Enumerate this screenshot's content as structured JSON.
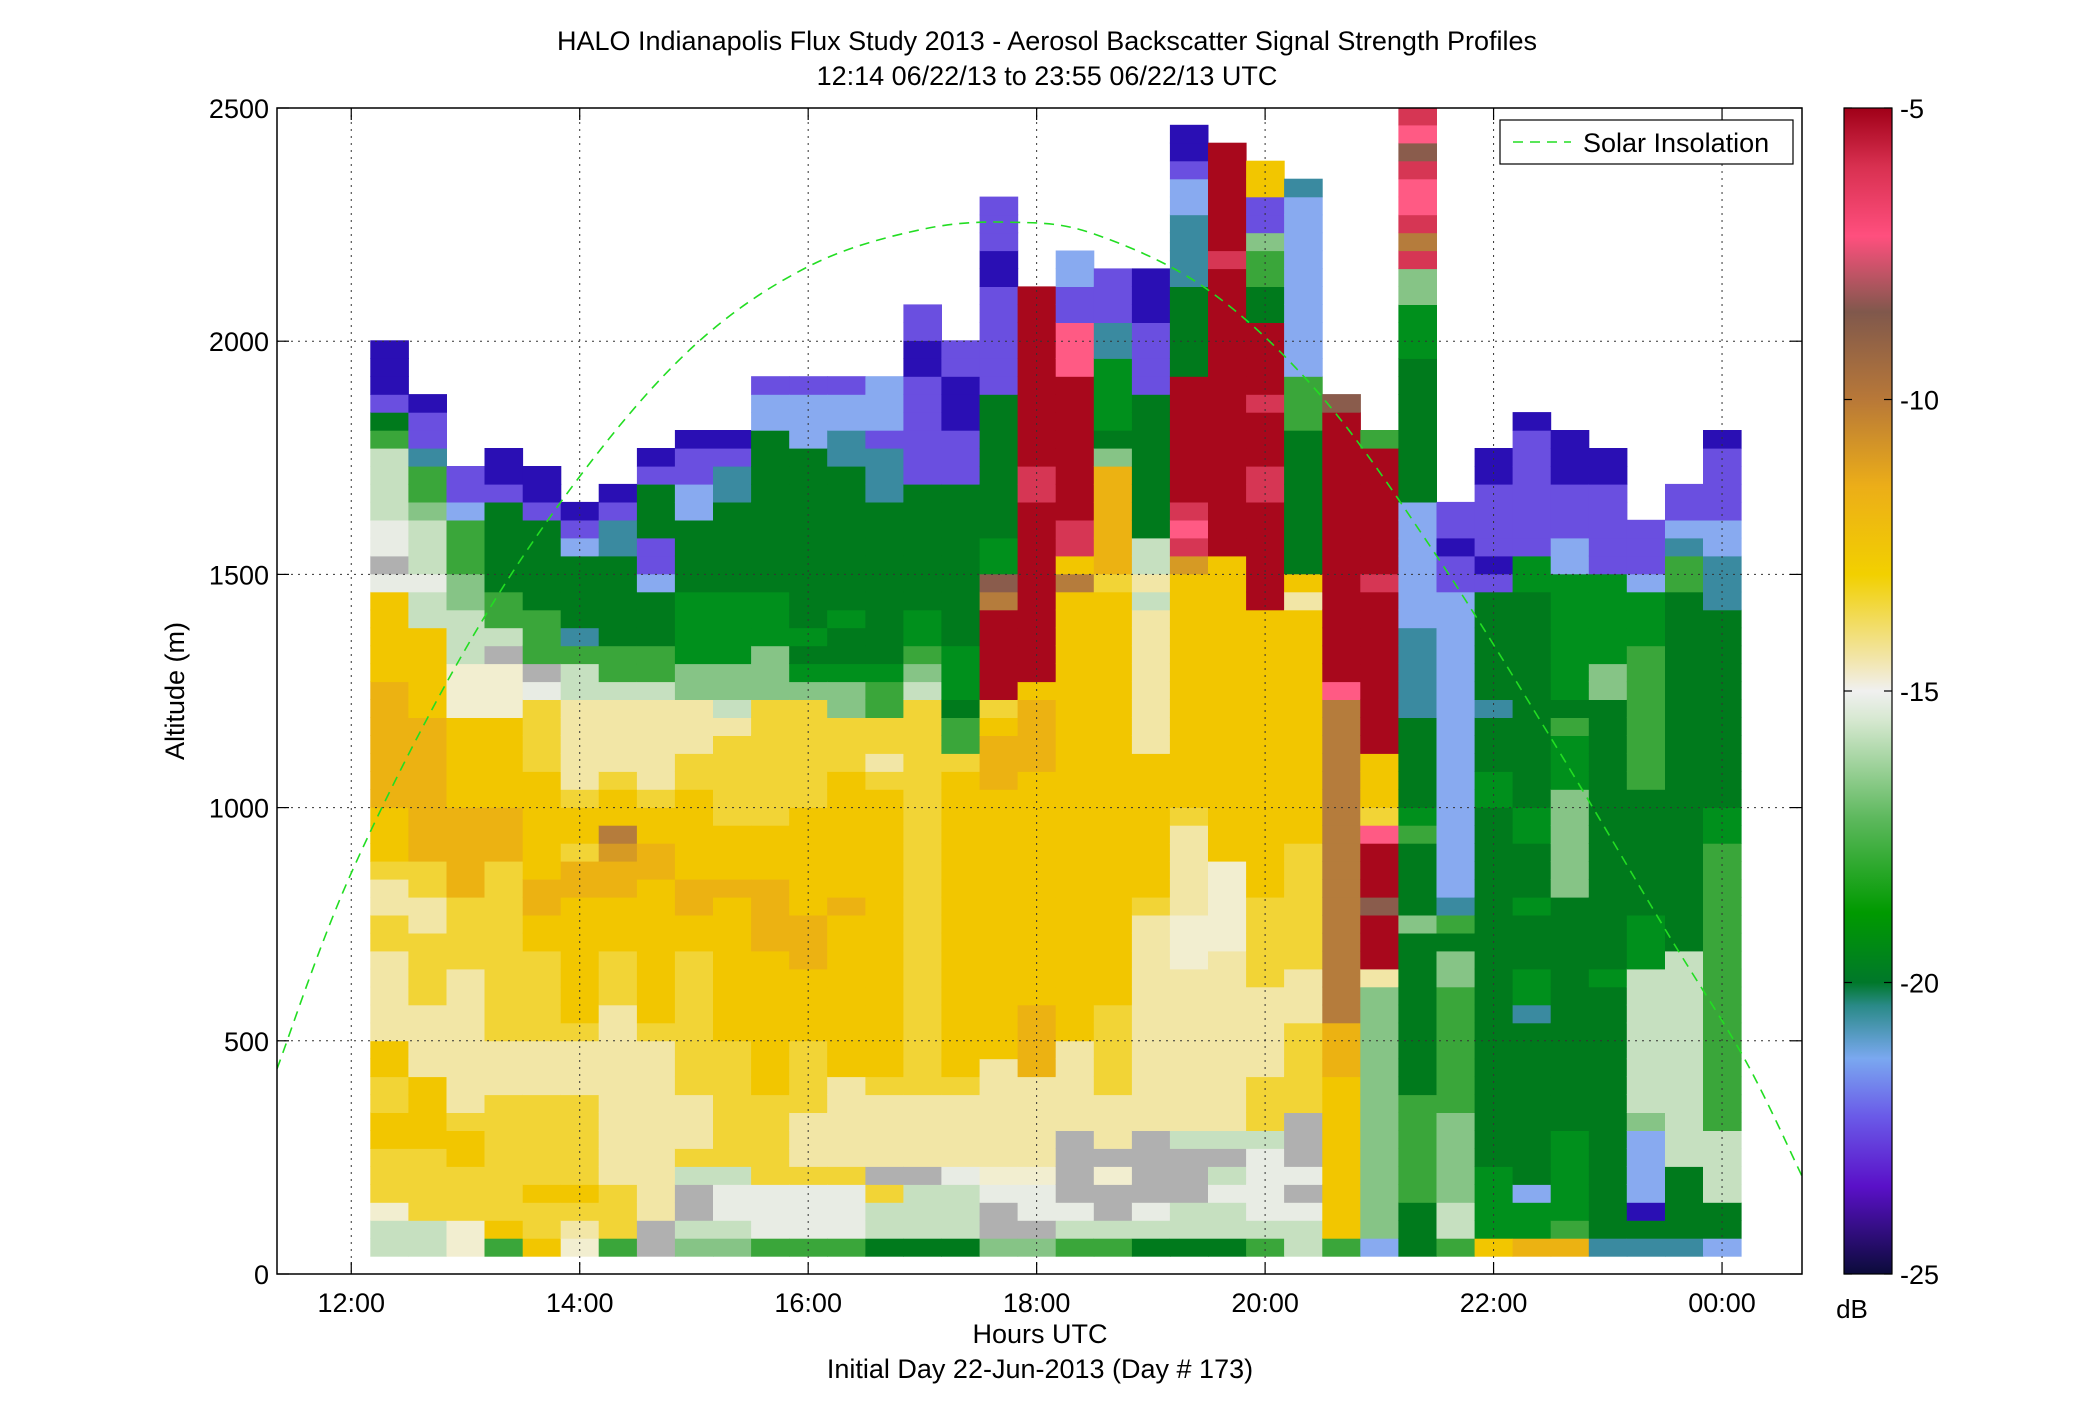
{
  "chart_data": {
    "type": "heatmap",
    "title": "HALO Indianapolis Flux Study 2013 - Aerosol Backscatter Signal Strength Profiles",
    "subtitle": "12:14 06/22/13 to 23:55 06/22/13  UTC",
    "xlabel": "Hours UTC",
    "xlabel2": "Initial Day 22-Jun-2013 (Day # 173)",
    "ylabel": "Altitude (m)",
    "xlim_hours": [
      11.35,
      24.7
    ],
    "ylim": [
      0,
      2500
    ],
    "x_tick_values": [
      12,
      14,
      16,
      18,
      20,
      22,
      24
    ],
    "x_tick_labels": [
      "12:00",
      "14:00",
      "16:00",
      "18:00",
      "20:00",
      "22:00",
      "00:00"
    ],
    "y_ticks": [
      0,
      500,
      1000,
      1500,
      2000,
      2500
    ],
    "grid": true,
    "legend": {
      "placement": "top-right",
      "entries": [
        {
          "name": "Solar Insolation",
          "color": "#22dd22",
          "style": "dashed"
        }
      ]
    },
    "colorbar": {
      "range": [
        -25,
        -5
      ],
      "ticks": [
        -25,
        -20,
        -15,
        -10,
        -5
      ],
      "unit_label": "dB",
      "stops": [
        {
          "v": -25,
          "c": "#0b0b3a"
        },
        {
          "v": -23.5,
          "c": "#5a10c8"
        },
        {
          "v": -22.3,
          "c": "#6a5ae8"
        },
        {
          "v": -21.3,
          "c": "#7aa8f0"
        },
        {
          "v": -20.4,
          "c": "#2a8a88"
        },
        {
          "v": -20,
          "c": "#00782a"
        },
        {
          "v": -18.8,
          "c": "#009a00"
        },
        {
          "v": -17.2,
          "c": "#5cb85c"
        },
        {
          "v": -15.5,
          "c": "#d6e8d0"
        },
        {
          "v": -15.0,
          "c": "#f0f0f0"
        },
        {
          "v": -14.5,
          "c": "#f2e6b0"
        },
        {
          "v": -13.0,
          "c": "#f2d000"
        },
        {
          "v": -11.5,
          "c": "#ecae18"
        },
        {
          "v": -10,
          "c": "#b87838"
        },
        {
          "v": -8.5,
          "c": "#80584c"
        },
        {
          "v": -7.2,
          "c": "#ff4f7e"
        },
        {
          "v": -6,
          "c": "#d83050"
        },
        {
          "v": -5,
          "c": "#a00018"
        }
      ]
    },
    "bin_width_hours": 0.333,
    "bin_height_m": 38.5,
    "palette": {
      "V": "#2a0fb4",
      "P": "#6a4fe0",
      "L": "#88aaf0",
      "T": "#3a8aa0",
      "G": "#007a1c",
      "g": "#00901c",
      "m": "#3aa63a",
      "l": "#86c486",
      "p": "#c6e0c0",
      "w": "#e8ece4",
      "s": "#b0b0b0",
      "c": "#f2eed0",
      "e": "#f2e6a6",
      "y": "#f2d436",
      "Y": "#f2c600",
      "O": "#ecb212",
      "o": "#d69a24",
      "b": "#b57c3c",
      "n": "#8a5c4c",
      "k": "#ff5a84",
      "K": "#d63654",
      "R": "#a8081c"
    },
    "series": [
      {
        "name": "Solar Insolation",
        "type": "line",
        "style": "dashed",
        "x": [
          11.35,
          12,
          13,
          14,
          15,
          16,
          17,
          17.8,
          18.5,
          19.5,
          20.5,
          21.5,
          22.5,
          23.5,
          24.2,
          24.7
        ],
        "y": [
          440,
          860,
          1340,
          1710,
          1990,
          2160,
          2240,
          2255,
          2230,
          2110,
          1880,
          1540,
          1150,
          740,
          460,
          210
        ]
      },
      {
        "name": "profile_12.33",
        "time_hours": 12.333,
        "start_bin": 1,
        "cells": "ppcyyyYYyyYYeeeeeyyeeyYYYOOOOOOOYYYYYwswwppppmGPVVV"
      },
      {
        "name": "profile_12.67",
        "time_hours": 12.667,
        "start_bin": 1,
        "cells": "ppyyyyYYYYeeeeyyyyeeyyOOOOOOOOYYYYYppwppplmmTPPV"
      },
      {
        "name": "profile_13.0",
        "time_hours": 13.0,
        "start_bin": 1,
        "cells": "ccyyyYYyeeeeeeeeyyyyOOOOOYYYYYcccpppllmmmLPP"
      },
      {
        "name": "profile_13.33",
        "time_hours": 13.333,
        "start_bin": 1,
        "cells": "mYyyyyyyyeeeyyyyyyyyyyOOOYYYYYcccspmmGGGGGPVV"
      },
      {
        "name": "profile_13.67",
        "time_hours": 13.667,
        "start_bin": 1,
        "cells": "YyyYyyyyyeeeyyyyyYYOOYYYYYYyyyywsmmmGGGGGPVV"
      },
      {
        "name": "profile_14.0",
        "time_hours": 14.0,
        "start_bin": 1,
        "cells": "ceyYyyyyyeeeyYYYYYYYOOyYYyeeeeeppmTGGGGLPV"
      },
      {
        "name": "profile_14.33",
        "time_hours": 14.333,
        "start_bin": 1,
        "cells": "myyyeeeeeeeeeeyyyYYYOOobYYyeeeepmmGGGGGTTPV"
      },
      {
        "name": "profile_14.67",
        "time_hours": 14.667,
        "start_bin": 1,
        "cells": "sseeeeeeeeeeyYYYYYYYYOOYYyeeeeepmmGGGLPPGGGPV"
      },
      {
        "name": "profile_15.0",
        "time_hours": 15.0,
        "start_bin": 1,
        "cells": "lpsspyeeeyyyyyyyyYYOOYYYYYyyeeellggggGGGGLLPPV"
      },
      {
        "name": "profile_15.33",
        "time_hours": 15.333,
        "start_bin": 1,
        "cells": "lpwwpyyyyyyyYYYYYYYYOYYYyyyyyepllggggGGGGGTTPV"
      },
      {
        "name": "profile_15.67",
        "time_hours": 15.667,
        "start_bin": 1,
        "cells": "mwwwyyyyyYYYYYYYYOOOOYYYyyyyyyylllgggGGGGGGGGGLLP"
      },
      {
        "name": "profile_16.0",
        "time_hours": 16.0,
        "start_bin": 1,
        "cells": "mwwwyeeeyyyyYYYYOOOYYYYYYyyyyyylgGgGGGGGGGGGGLLLP"
      },
      {
        "name": "profile_16.33",
        "time_hours": 16.333,
        "start_bin": 1,
        "cells": "mwwwyeeeeeYYYYYYYYYOYYYYYYYyyyllgGGgGGGGGGGGTTLLP"
      },
      {
        "name": "profile_16.67",
        "time_hours": 16.667,
        "start_bin": 1,
        "cells": "GppyseeeeyYYYYYYYYYYYYYYYYyeyymmgGGGGGGGGGTTTPLLL"
      },
      {
        "name": "profile_17.0",
        "time_hours": 17.0,
        "start_bin": 1,
        "cells": "GpppseeeeyyyyyyyyyyyyyyyyyyyyyyplmggGGGGGGGPPPPPPVVPP"
      },
      {
        "name": "profile_17.33",
        "time_hours": 17.333,
        "start_bin": 1,
        "cells": "GpppweeeeyYYYYYYYYYYYYYYYYYymmGgggGGGGGGGGGPPPVVVPP"
      },
      {
        "name": "profile_17.67",
        "time_hours": 17.667,
        "start_bin": 1,
        "cells": "lsswceeeeeeYYYYYYYYYYYYYYYOOOYyRRRRRbnggGGGGGGGGPPPPPPVVPPP"
      },
      {
        "name": "profile_18.0",
        "time_hours": 18.0,
        "start_bin": 1,
        "cells": "lswwceeeeeOOOOYYYYYYYYYYYYYOOOOYRRRRRRRRRRKKRRRRRRRRRR"
      },
      {
        "name": "profile_18.33",
        "time_hours": 18.333,
        "start_bin": 1,
        "cells": "mpwsssseeeeeYYYYYYYYYYYYYYYYYYYYYYYYYbYKKRRRRRRRRkkkPPLL"
      },
      {
        "name": "profile_18.67",
        "time_hours": 18.667,
        "start_bin": 1,
        "cells": "mpsscseeeyyyyyYYYYYYYYYYYYYYYYYYYYYYYyOOOOOOlGggggTTPPP"
      },
      {
        "name": "profile_19.0",
        "time_hours": 19.0,
        "start_bin": 1,
        "cells": "GpwsssseeeeeeeeeeeeyYYYYYYYYeeeeeeeepeppGGGGGGGGPPPPVVV"
      },
      {
        "name": "profile_19.33",
        "time_hours": 19.333,
        "start_bin": 1,
        "cells": "GppssspeeeeeeeeeccceeeeeyYYYYYYYYYYYYYoKkKRRRRRRRGGGGGTTTTLLPVV"
      },
      {
        "name": "profile_19.67",
        "time_hours": 19.667,
        "start_bin": 1,
        "cells": "GppwpspeeeeeeeeeecccccYYYYYYYYYYYYYYYYYRRRRRRRRRRRRRRRRKRRRRRR"
      },
      {
        "name": "profile_20.0",
        "time_hours": 20.0,
        "start_bin": 1,
        "cells": "mpwwwwpyyyeeeeeyyyyyYYYYYYYYYYYYYYYYRRRRRRKKRRRKRRRRGGmmlPPYY"
      },
      {
        "name": "profile_20.33",
        "time_hours": 20.333,
        "start_bin": 1,
        "cells": "ppwswsssyyyyyeeeyyyyyyyYYYYYYYYYYYYYeYGGGGGGGGmmmLLLLLLLLLLT"
      },
      {
        "name": "profile_20.67",
        "time_hours": 20.667,
        "start_bin": 1,
        "cells": "mYYYYYYYYYOOObbbbbbbbbbbbbbbbbbkRRRRRRRRRRRRRRRn"
      },
      {
        "name": "profile_21.0",
        "time_hours": 21.0,
        "start_bin": 1,
        "cells": "LlllllllllllllleRRRnRRRkyYYYRRRRRRRRRKRRRRRRRm"
      },
      {
        "name": "profile_21.33",
        "time_hours": 21.333,
        "start_bin": 1,
        "cells": "GGGmmmmmmGGGGGGGGGlGGGGmgGGGGGTTTTTLLLLLLLGGGGGGGGgggllKbKkkKnkKKyYgpwpmmlGGpnRRRR"
      },
      {
        "name": "profile_21.67",
        "time_hours": 21.667,
        "start_bin": 1,
        "cells": "mpplllllmmmmmmmllGmTLLLLLLLLLLLLLLLLLPPVPP"
      },
      {
        "name": "profile_22.0",
        "time_hours": 22.0,
        "start_bin": 1,
        "cells": "YggggGGGGGGGGGGGGGGGGGGGGggGGGTGGGGGGPVPPPPVV"
      },
      {
        "name": "profile_22.33",
        "time_hours": 22.333,
        "start_bin": 1,
        "cells": "OggLGGGGGGGGGTggGGGgGGGggGGGGGGGGGGGGggPPPPPPPV"
      },
      {
        "name": "profile_22.67",
        "time_hours": 22.667,
        "start_bin": 1,
        "cells": "OmgggggGGGGGGGGGGGGGllllllgggmGgggggggLLPPPVVV"
      },
      {
        "name": "profile_23.0",
        "time_hours": 23.0,
        "start_bin": 1,
        "cells": "TGGGGGGGGGGGGGGgGGGGGGGGGGGGGGGllgggggPPPPPVV"
      },
      {
        "name": "profile_23.33",
        "time_hours": 23.333,
        "start_bin": 1,
        "cells": "TGVLLLLlppppppppgggGGGGGGGmmmmmmmmgggLPPP"
      },
      {
        "name": "profile_23.67",
        "time_hours": 23.667,
        "start_bin": 1,
        "cells": "TGGGGppppppppppppGGGGGGGGGGGGGGGGGGGGmmTLPP"
      },
      {
        "name": "profile_24.0",
        "time_hours": 24.0,
        "start_bin": 1,
        "cells": "LGGppppmmmmmmmmmmmmmmmmggGGGGGGGGGGGTTTLLPPPPV"
      }
    ]
  }
}
